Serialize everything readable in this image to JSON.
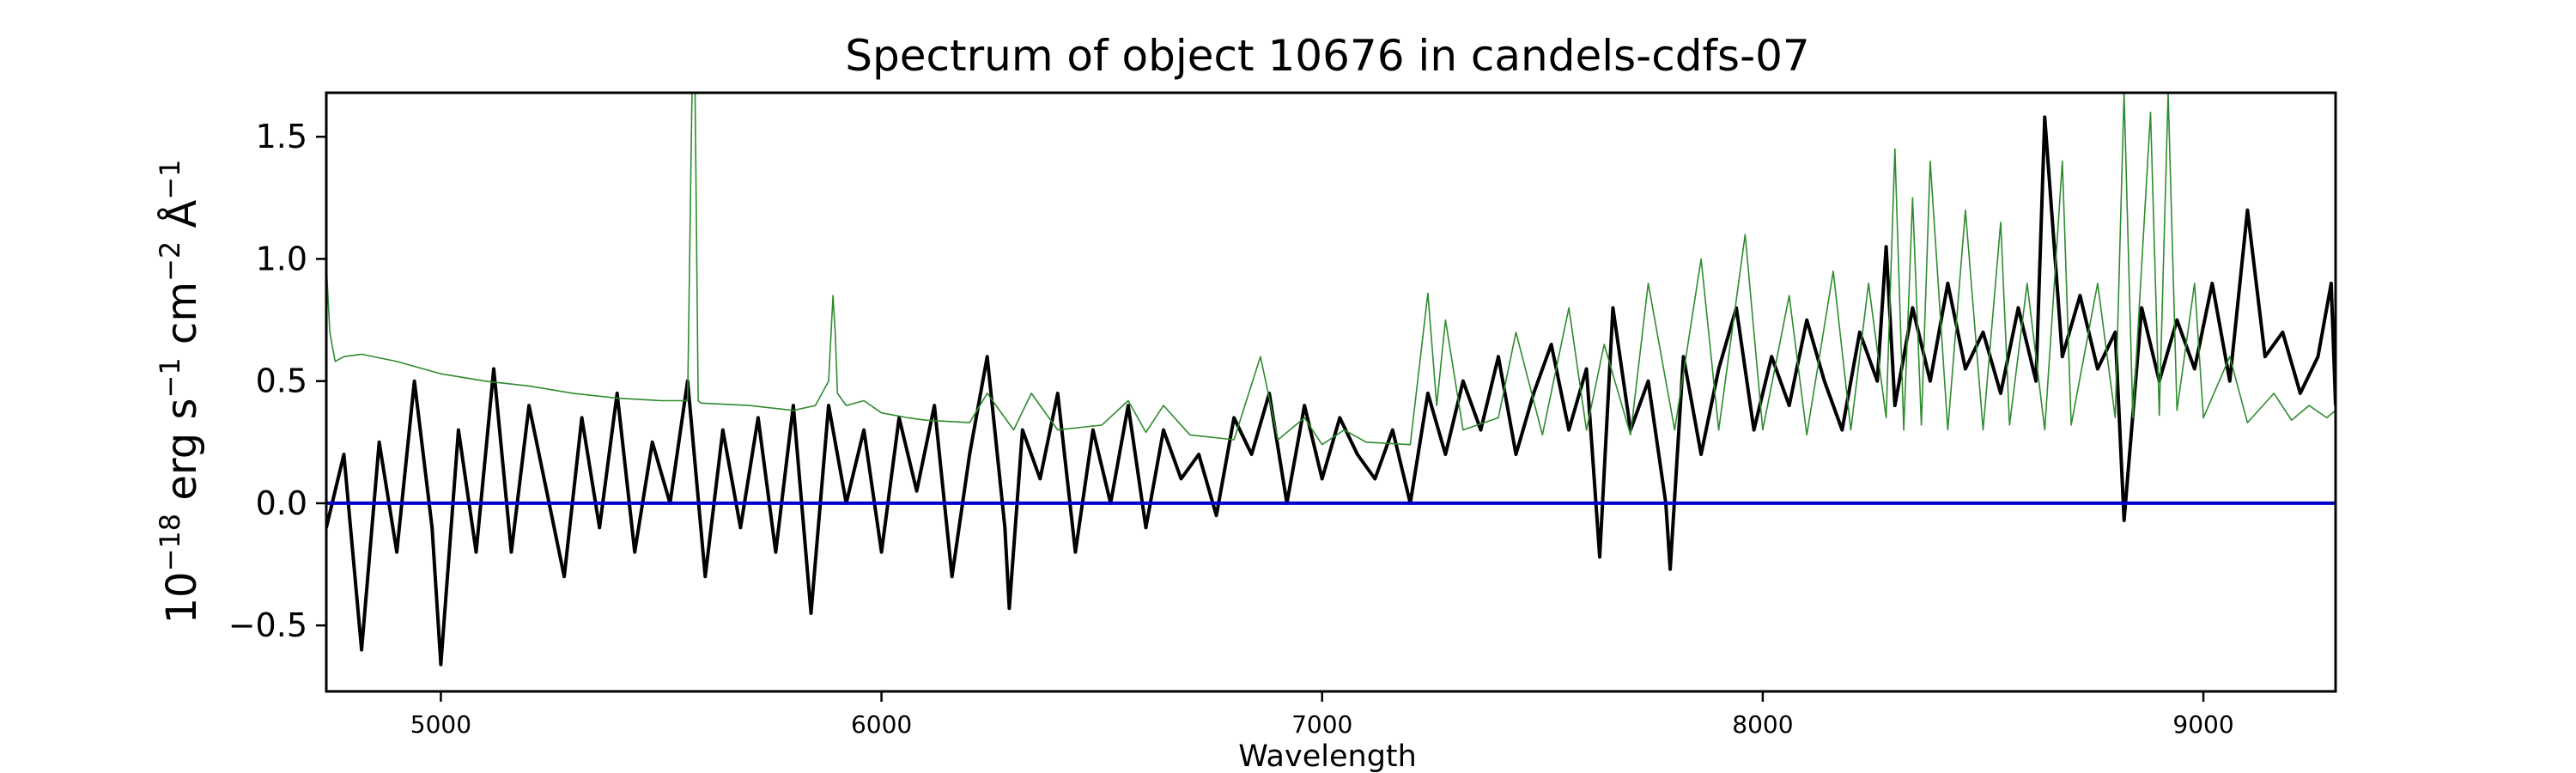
{
  "chart_data": {
    "type": "line",
    "title": "Spectrum of object 10676 in candels-cdfs-07",
    "xlabel": "Wavelength",
    "ylabel_parts": {
      "base": "10",
      "exp1": "−18",
      "erg": " erg s",
      "exp2": "−1",
      "cm": " cm",
      "exp3": "−2",
      "ang": " Å",
      "exp4": "−1"
    },
    "xlim": [
      4740,
      9300
    ],
    "ylim": [
      -0.77,
      1.68
    ],
    "x_ticks": [
      5000,
      6000,
      7000,
      8000,
      9000
    ],
    "x_tick_labels": [
      "5000",
      "6000",
      "7000",
      "8000",
      "9000"
    ],
    "y_ticks": [
      -0.5,
      0.0,
      0.5,
      1.0,
      1.5
    ],
    "y_tick_labels": [
      "−0.5",
      "0.0",
      "0.5",
      "1.0",
      "1.5"
    ],
    "grid": false,
    "series": [
      {
        "color": "#000000",
        "line_width": 4,
        "x": [
          4740,
          4780,
          4820,
          4860,
          4900,
          4940,
          4980,
          5000,
          5040,
          5080,
          5120,
          5160,
          5200,
          5240,
          5280,
          5320,
          5360,
          5400,
          5440,
          5480,
          5520,
          5560,
          5600,
          5640,
          5680,
          5720,
          5760,
          5800,
          5840,
          5880,
          5920,
          5960,
          6000,
          6040,
          6080,
          6120,
          6160,
          6200,
          6240,
          6280,
          6290,
          6320,
          6360,
          6400,
          6440,
          6480,
          6520,
          6560,
          6600,
          6640,
          6680,
          6720,
          6760,
          6800,
          6840,
          6880,
          6920,
          6960,
          7000,
          7040,
          7080,
          7120,
          7160,
          7200,
          7240,
          7280,
          7320,
          7360,
          7400,
          7440,
          7480,
          7520,
          7560,
          7600,
          7630,
          7660,
          7700,
          7740,
          7780,
          7790,
          7820,
          7860,
          7900,
          7940,
          7980,
          8020,
          8060,
          8100,
          8140,
          8180,
          8220,
          8260,
          8280,
          8300,
          8340,
          8380,
          8420,
          8460,
          8500,
          8540,
          8580,
          8620,
          8640,
          8680,
          8720,
          8760,
          8800,
          8820,
          8860,
          8900,
          8940,
          8980,
          9020,
          9060,
          9100,
          9140,
          9180,
          9220,
          9260,
          9290,
          9300
        ],
        "y": [
          -0.1,
          0.2,
          -0.6,
          0.25,
          -0.2,
          0.5,
          -0.1,
          -0.66,
          0.3,
          -0.2,
          0.55,
          -0.2,
          0.4,
          0.05,
          -0.3,
          0.35,
          -0.1,
          0.45,
          -0.2,
          0.25,
          0.0,
          0.5,
          -0.3,
          0.3,
          -0.1,
          0.35,
          -0.2,
          0.4,
          -0.45,
          0.4,
          0.0,
          0.3,
          -0.2,
          0.35,
          0.05,
          0.4,
          -0.3,
          0.2,
          0.6,
          -0.1,
          -0.43,
          0.3,
          0.1,
          0.45,
          -0.2,
          0.3,
          0.0,
          0.4,
          -0.1,
          0.3,
          0.1,
          0.2,
          -0.05,
          0.35,
          0.2,
          0.45,
          0.0,
          0.4,
          0.1,
          0.35,
          0.2,
          0.1,
          0.3,
          0.0,
          0.45,
          0.2,
          0.5,
          0.3,
          0.6,
          0.2,
          0.45,
          0.65,
          0.3,
          0.55,
          -0.22,
          0.8,
          0.3,
          0.5,
          0.0,
          -0.27,
          0.6,
          0.2,
          0.55,
          0.8,
          0.3,
          0.6,
          0.4,
          0.75,
          0.5,
          0.3,
          0.7,
          0.5,
          1.05,
          0.4,
          0.8,
          0.5,
          0.9,
          0.55,
          0.7,
          0.45,
          0.8,
          0.5,
          1.58,
          0.6,
          0.85,
          0.55,
          0.7,
          -0.07,
          0.8,
          0.5,
          0.75,
          0.55,
          0.9,
          0.5,
          1.2,
          0.6,
          0.7,
          0.45,
          0.6,
          0.9,
          0.4
        ]
      },
      {
        "color": "#2e8b2e",
        "line_width": 1.6,
        "x": [
          4740,
          4748,
          4760,
          4780,
          4820,
          4900,
          5000,
          5100,
          5200,
          5300,
          5400,
          5500,
          5560,
          5570,
          5577,
          5584,
          5590,
          5700,
          5800,
          5850,
          5880,
          5890,
          5895,
          5900,
          5920,
          5960,
          6000,
          6060,
          6100,
          6200,
          6240,
          6300,
          6340,
          6400,
          6500,
          6560,
          6600,
          6640,
          6700,
          6800,
          6860,
          6900,
          6960,
          7000,
          7050,
          7100,
          7200,
          7240,
          7260,
          7280,
          7320,
          7400,
          7440,
          7500,
          7560,
          7600,
          7640,
          7700,
          7740,
          7800,
          7860,
          7900,
          7960,
          8000,
          8060,
          8100,
          8160,
          8200,
          8240,
          8280,
          8300,
          8320,
          8340,
          8360,
          8380,
          8420,
          8460,
          8500,
          8540,
          8560,
          8600,
          8640,
          8680,
          8700,
          8760,
          8800,
          8820,
          8840,
          8880,
          8900,
          8920,
          8940,
          8980,
          9000,
          9060,
          9100,
          9160,
          9200,
          9240,
          9280,
          9300
        ],
        "y": [
          0.98,
          0.7,
          0.58,
          0.6,
          0.61,
          0.58,
          0.53,
          0.5,
          0.48,
          0.45,
          0.43,
          0.42,
          0.42,
          1.68,
          1.68,
          0.42,
          0.41,
          0.4,
          0.38,
          0.4,
          0.5,
          0.85,
          0.7,
          0.45,
          0.4,
          0.42,
          0.37,
          0.35,
          0.34,
          0.33,
          0.45,
          0.3,
          0.45,
          0.3,
          0.32,
          0.42,
          0.29,
          0.4,
          0.28,
          0.26,
          0.6,
          0.26,
          0.35,
          0.24,
          0.3,
          0.25,
          0.24,
          0.86,
          0.4,
          0.75,
          0.3,
          0.35,
          0.7,
          0.28,
          0.8,
          0.3,
          0.65,
          0.28,
          0.9,
          0.3,
          1.0,
          0.3,
          1.1,
          0.3,
          0.85,
          0.28,
          0.95,
          0.3,
          0.9,
          0.35,
          1.45,
          0.3,
          1.25,
          0.32,
          1.4,
          0.3,
          1.2,
          0.3,
          1.15,
          0.32,
          0.9,
          0.3,
          1.4,
          0.32,
          0.9,
          0.35,
          1.68,
          0.35,
          1.6,
          0.36,
          1.68,
          0.38,
          0.9,
          0.35,
          0.6,
          0.33,
          0.45,
          0.34,
          0.4,
          0.35,
          0.38
        ]
      },
      {
        "color": "#0000cc",
        "line_width": 4,
        "x": [
          4740,
          9300
        ],
        "y": [
          0.0,
          0.0
        ]
      }
    ]
  }
}
